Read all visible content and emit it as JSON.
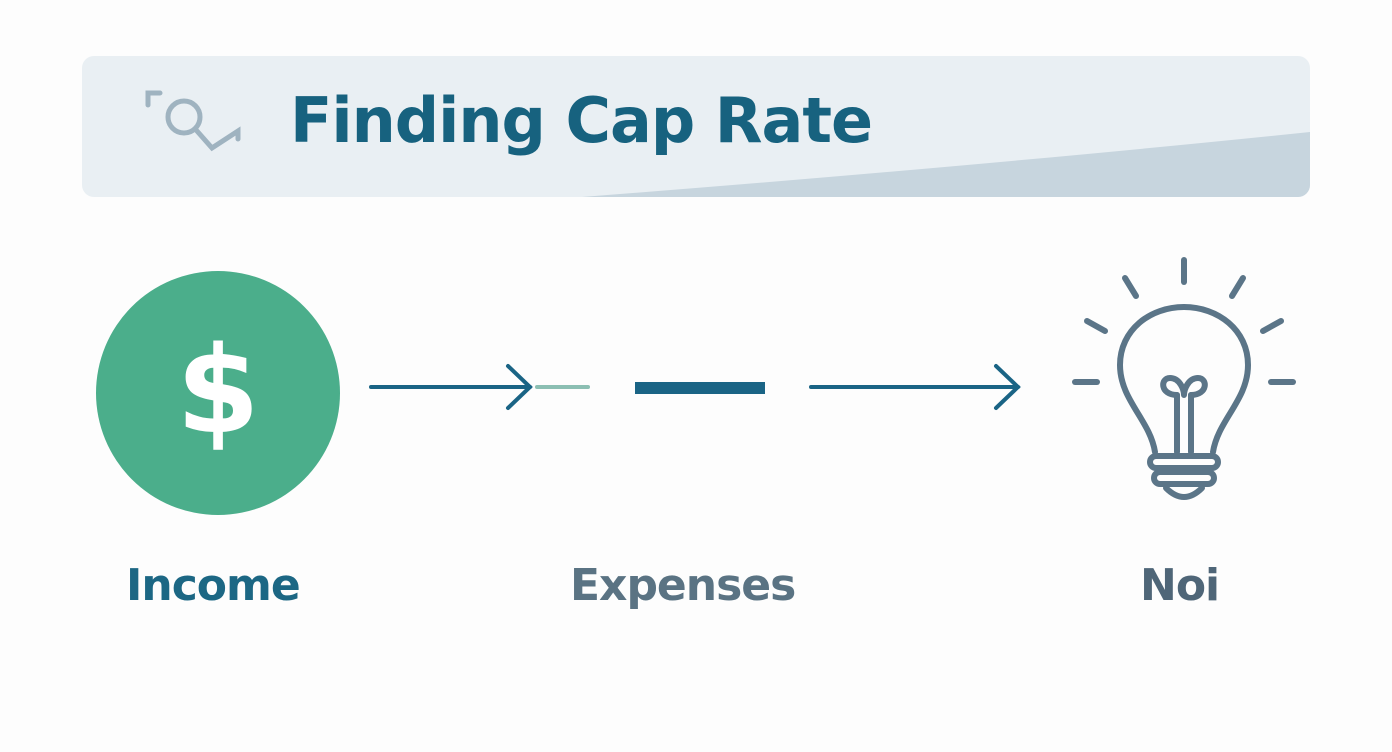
{
  "header": {
    "title": "Finding Cap Rate",
    "icon": "search-magnifier-icon"
  },
  "flow": {
    "steps": [
      {
        "label": "Income",
        "icon": "dollar-icon"
      },
      {
        "label": "Expenses",
        "icon": "minus-icon"
      },
      {
        "label": "Noi",
        "icon": "lightbulb-icon"
      }
    ]
  },
  "colors": {
    "title": "#17627f",
    "income_circle": "#4bae8b",
    "arrow": "#1a6485",
    "bulb": "#5b7588",
    "banner": "#e9eff3"
  }
}
